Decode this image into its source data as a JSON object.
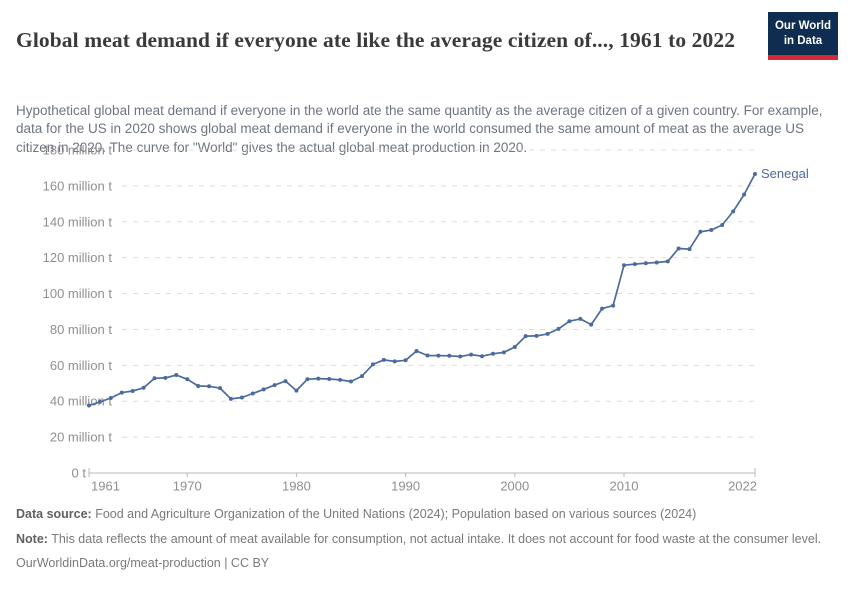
{
  "header": {
    "title": "Global meat demand if everyone ate like the average citizen of..., 1961 to 2022",
    "subtitle": "Hypothetical global meat demand if everyone in the world ate the same quantity as the average citizen of a given country. For example, data for the US in 2020 shows global meat demand if everyone in the world consumed the same amount of meat as the average US citizen in 2020. The curve for \"World\" gives the actual global meat production in 2020.",
    "logo": {
      "line1": "Our World",
      "line2": "in Data"
    }
  },
  "chart_data": {
    "type": "line",
    "title": "Global meat demand if everyone ate like the average citizen of..., 1961 to 2022",
    "unit": "million t",
    "xlim": [
      1961,
      2022
    ],
    "ylim": [
      0,
      180
    ],
    "grid": true,
    "legend_position": "end-of-line",
    "xticks": [
      1961,
      1970,
      1980,
      1990,
      2000,
      2010,
      2022
    ],
    "yticks": [
      {
        "value": 0,
        "label": "0 t"
      },
      {
        "value": 20,
        "label": "20 million t"
      },
      {
        "value": 40,
        "label": "40 million t"
      },
      {
        "value": 60,
        "label": "60 million t"
      },
      {
        "value": 80,
        "label": "80 million t"
      },
      {
        "value": 100,
        "label": "100 million t"
      },
      {
        "value": 120,
        "label": "120 million t"
      },
      {
        "value": 140,
        "label": "140 million t"
      },
      {
        "value": 160,
        "label": "160 million t"
      },
      {
        "value": 180,
        "label": "180 million t"
      }
    ],
    "x_start_year": 1961,
    "series": [
      {
        "name": "Senegal",
        "color": "#4c6b9c",
        "values": [
          37.6,
          39.6,
          41.8,
          44.8,
          45.7,
          47.5,
          52.8,
          53.0,
          54.6,
          52.2,
          48.5,
          48.3,
          47.3,
          41.3,
          42.1,
          44.3,
          46.6,
          49.0,
          51.2,
          45.9,
          52.3,
          52.6,
          52.4,
          51.9,
          51.0,
          54.0,
          60.5,
          63.0,
          62.2,
          62.8,
          68.0,
          65.5,
          65.4,
          65.3,
          64.9,
          66.0,
          65.1,
          66.4,
          67.2,
          70.2,
          76.3,
          76.4,
          77.5,
          80.3,
          84.6,
          85.9,
          82.7,
          91.6,
          93.3,
          115.8,
          116.4,
          116.9,
          117.3,
          117.9,
          125.1,
          124.8,
          134.4,
          135.4,
          138.2,
          145.8,
          155.2,
          166.6
        ]
      }
    ]
  },
  "footer": {
    "data_source_label": "Data source:",
    "data_source_text": " Food and Agriculture Organization of the United Nations (2024); Population based on various sources (2024)",
    "note_label": "Note:",
    "note_text": " This data reflects the amount of meat available for consumption, not actual intake. It does not account for food waste at the consumer level.",
    "link_text": "OurWorldinData.org/meat-production | CC BY"
  }
}
